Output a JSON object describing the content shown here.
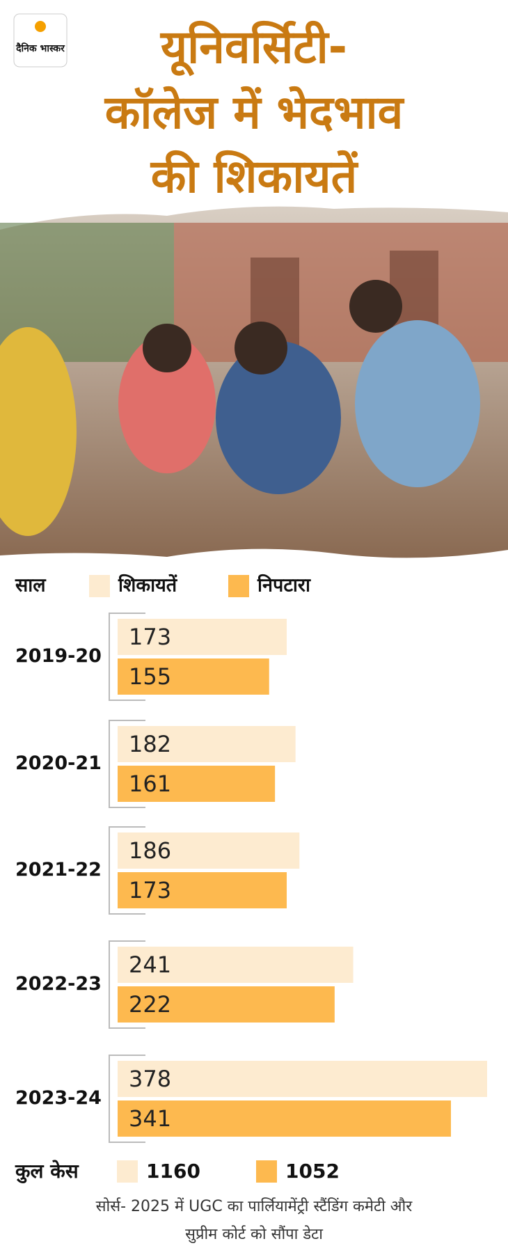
{
  "logo": "दैनिक भास्कर",
  "chart_data": {
    "type": "bar",
    "orientation": "horizontal",
    "title": [
      "यूनिवर्सिटी-",
      "कॉलेज में भेदभाव",
      "की शिकायतें"
    ],
    "category_label": "साल",
    "categories": [
      "2019-20",
      "2020-21",
      "2021-22",
      "2022-23",
      "2023-24"
    ],
    "series": [
      {
        "name": "शिकायतें",
        "color": "#fdebd0",
        "values": [
          173,
          182,
          186,
          241,
          378
        ]
      },
      {
        "name": "निपटारा",
        "color": "#fdb94f",
        "values": [
          155,
          161,
          173,
          222,
          341
        ]
      }
    ],
    "totals_label": "कुल केस",
    "totals": [
      1160,
      1052
    ],
    "source": [
      "सोर्स- 2025 में UGC का पार्लियामेंट्री स्टैंडिंग कमेटी और",
      "सुप्रीम कोर्ट को सौंपा डेटा"
    ]
  }
}
